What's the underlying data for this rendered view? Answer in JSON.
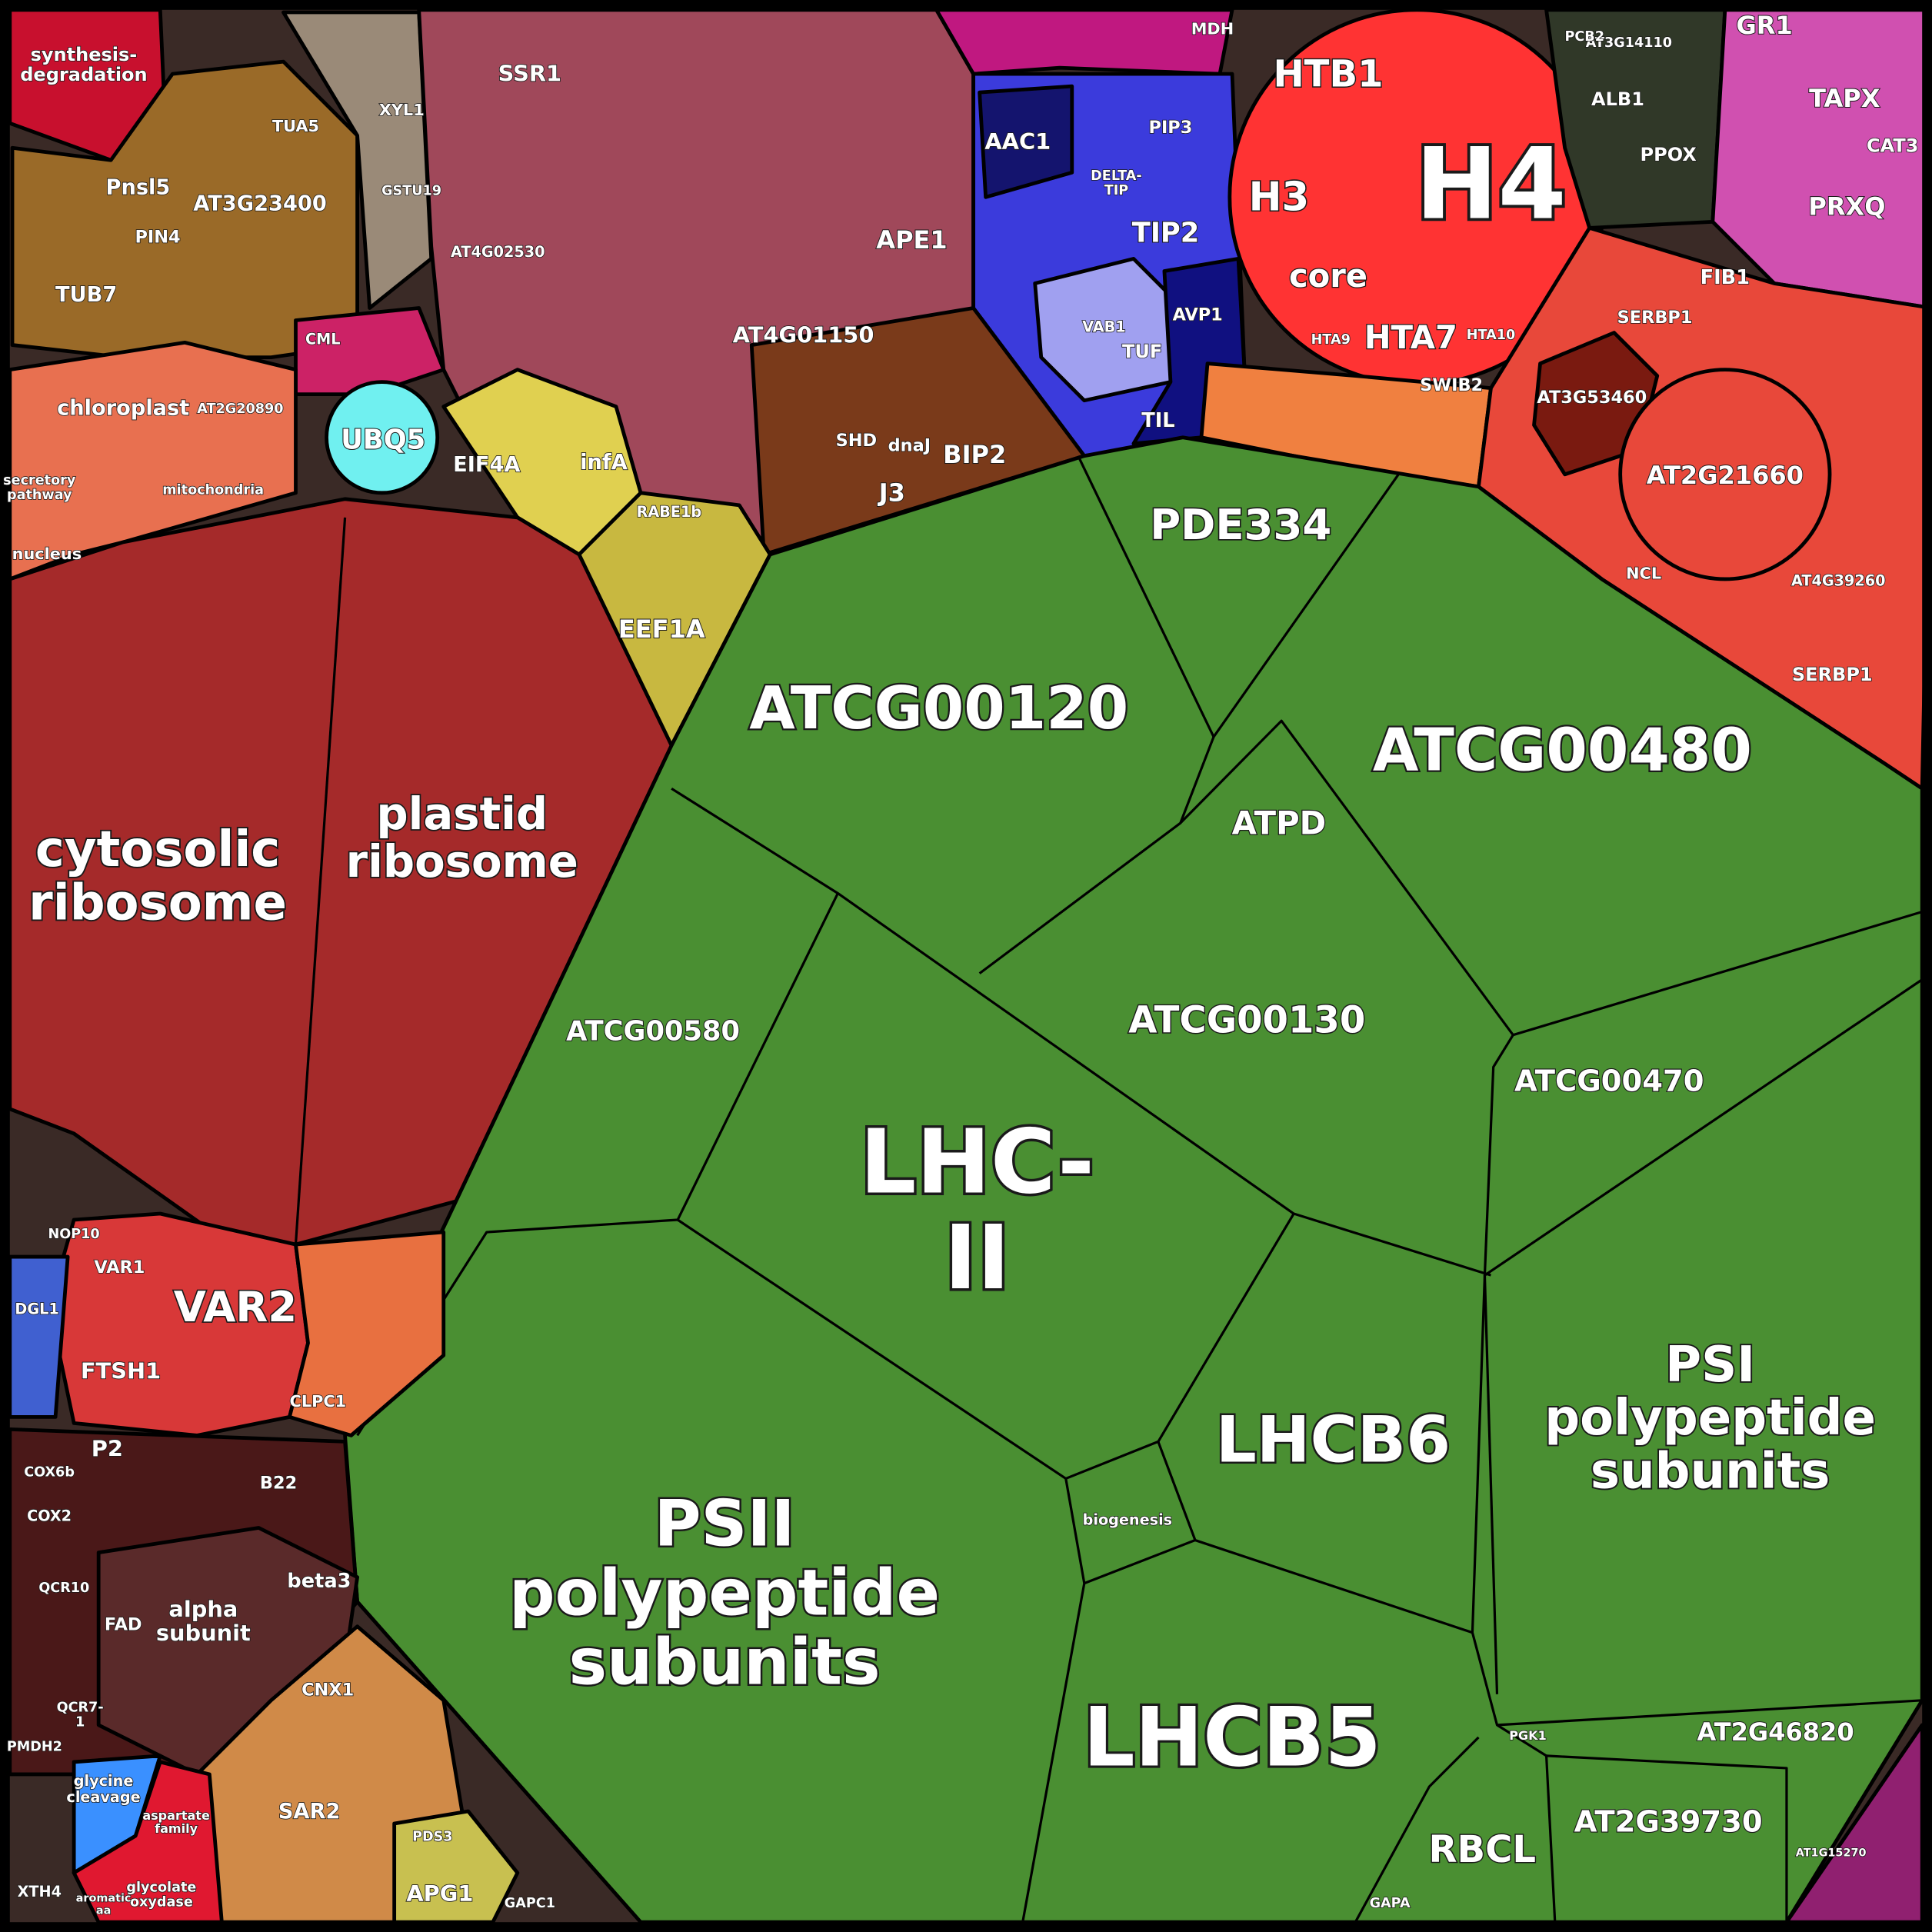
{
  "cells": [
    {
      "label": [
        "H4"
      ]
    },
    {
      "label": [
        "HTB1"
      ]
    },
    {
      "label": [
        "H3"
      ]
    },
    {
      "label": [
        "core"
      ]
    },
    {
      "label": [
        "HTA7"
      ]
    },
    {
      "label": [
        "HTA9"
      ]
    },
    {
      "label": [
        "HTA10"
      ]
    },
    {
      "label": [
        "SWIB2"
      ]
    },
    {
      "label": [
        "ATCG00120"
      ]
    },
    {
      "label": [
        "ATCG00480"
      ]
    },
    {
      "label": [
        "PDE334"
      ]
    },
    {
      "label": [
        "ATPD"
      ]
    },
    {
      "label": [
        "ATCG00130"
      ]
    },
    {
      "label": [
        "ATCG00580"
      ]
    },
    {
      "label": [
        "ATCG00470"
      ]
    },
    {
      "label": [
        "LHC-",
        "II"
      ]
    },
    {
      "label": [
        "LHCB6"
      ]
    },
    {
      "label": [
        "biogenesis"
      ]
    },
    {
      "label": [
        "PSII",
        "polypeptide",
        "subunits"
      ]
    },
    {
      "label": [
        "PSI",
        "polypeptide",
        "subunits"
      ]
    },
    {
      "label": [
        "LHCB5"
      ]
    },
    {
      "label": [
        "RBCL"
      ]
    },
    {
      "label": [
        "AT2G39730"
      ]
    },
    {
      "label": [
        "AT2G46820"
      ]
    },
    {
      "label": [
        "PGK1"
      ]
    },
    {
      "label": [
        "GAPA"
      ]
    },
    {
      "label": [
        "cytosolic",
        "ribosome"
      ]
    },
    {
      "label": [
        "plastid",
        "ribosome"
      ]
    },
    {
      "label": [
        "chloroplast"
      ]
    },
    {
      "label": [
        "AT2G20890"
      ]
    },
    {
      "label": [
        "secretory",
        "pathway"
      ]
    },
    {
      "label": [
        "mitochondria"
      ]
    },
    {
      "label": [
        "nucleus"
      ]
    },
    {
      "label": [
        "UBQ5"
      ]
    },
    {
      "label": [
        "EIF4A"
      ]
    },
    {
      "label": [
        "infA"
      ]
    },
    {
      "label": [
        "EEF1A"
      ]
    },
    {
      "label": [
        "RABE1b"
      ]
    },
    {
      "label": [
        "AT4G01150"
      ]
    },
    {
      "label": [
        "APE1"
      ]
    },
    {
      "label": [
        "AT4G02530"
      ]
    },
    {
      "label": [
        "SSR1"
      ]
    },
    {
      "label": [
        "AAC1"
      ]
    },
    {
      "label": [
        "TIP2"
      ]
    },
    {
      "label": [
        "DELTA-",
        "TIP"
      ]
    },
    {
      "label": [
        "PIP3"
      ]
    },
    {
      "label": [
        "AVP1"
      ]
    },
    {
      "label": [
        "TIL"
      ]
    },
    {
      "label": [
        "TUF"
      ]
    },
    {
      "label": [
        "VAB1"
      ]
    },
    {
      "label": [
        "BIP2"
      ]
    },
    {
      "label": [
        "J3"
      ]
    },
    {
      "label": [
        "SHD"
      ]
    },
    {
      "label": [
        "dnaJ"
      ]
    },
    {
      "label": [
        "AT3G23400"
      ]
    },
    {
      "label": [
        "Pnsl5"
      ]
    },
    {
      "label": [
        "TUB7"
      ]
    },
    {
      "label": [
        "PIN4"
      ]
    },
    {
      "label": [
        "TUA5"
      ]
    },
    {
      "label": [
        "synthesis-",
        "degradation"
      ]
    },
    {
      "label": [
        "XYL1"
      ]
    },
    {
      "label": [
        "GSTU19"
      ]
    },
    {
      "label": [
        "CML"
      ]
    },
    {
      "label": [
        "ALB1"
      ]
    },
    {
      "label": [
        "PPOX"
      ]
    },
    {
      "label": [
        "AT3G14110"
      ]
    },
    {
      "label": [
        "PCB2"
      ]
    },
    {
      "label": [
        "GR1"
      ]
    },
    {
      "label": [
        "TAPX"
      ]
    },
    {
      "label": [
        "CAT3"
      ]
    },
    {
      "label": [
        "PRXQ"
      ]
    },
    {
      "label": [
        "SERBP1"
      ]
    },
    {
      "label": [
        "FIB1"
      ]
    },
    {
      "label": [
        "AT3G53460"
      ]
    },
    {
      "label": [
        "AT2G21660"
      ]
    },
    {
      "label": [
        "NCL"
      ]
    },
    {
      "label": [
        "AT4G39260"
      ]
    },
    {
      "label": [
        "SERBP1"
      ]
    },
    {
      "label": [
        "MDH"
      ]
    },
    {
      "label": [
        "VAR2"
      ]
    },
    {
      "label": [
        "VAR1"
      ]
    },
    {
      "label": [
        "FTSH1"
      ]
    },
    {
      "label": [
        "CLPC1"
      ]
    },
    {
      "label": [
        "NOP10"
      ]
    },
    {
      "label": [
        "DGL1"
      ]
    },
    {
      "label": [
        "P2"
      ]
    },
    {
      "label": [
        "B22"
      ]
    },
    {
      "label": [
        "COX6b"
      ]
    },
    {
      "label": [
        "COX2"
      ]
    },
    {
      "label": [
        "alpha",
        "subunit"
      ]
    },
    {
      "label": [
        "beta3"
      ]
    },
    {
      "label": [
        "FAD"
      ]
    },
    {
      "label": [
        "QCR10"
      ]
    },
    {
      "label": [
        "QCR7-",
        "1"
      ]
    },
    {
      "label": [
        "PMDH2"
      ]
    },
    {
      "label": [
        "CNX1"
      ]
    },
    {
      "label": [
        "SAR2"
      ]
    },
    {
      "label": [
        "APG1"
      ]
    },
    {
      "label": [
        "GAPC1"
      ]
    },
    {
      "label": [
        "PDS3"
      ]
    },
    {
      "label": [
        "glycine",
        "cleavage"
      ]
    },
    {
      "label": [
        "aspartate",
        "family"
      ]
    },
    {
      "label": [
        "glycolate",
        "oxydase"
      ]
    },
    {
      "label": [
        "aromatic",
        "aa"
      ]
    },
    {
      "label": [
        "XTH4"
      ]
    },
    {
      "label": [
        "AT1G15270"
      ]
    }
  ]
}
